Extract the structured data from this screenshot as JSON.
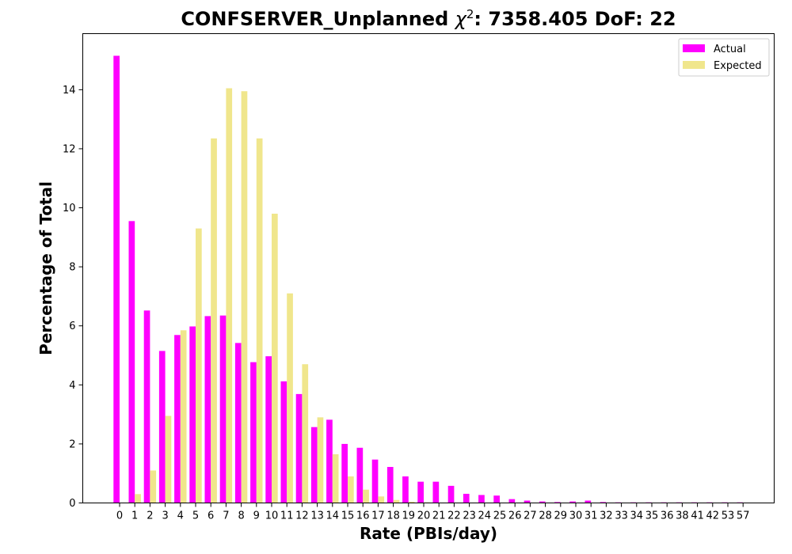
{
  "chart_data": {
    "type": "bar",
    "title": {
      "prefix": "CONFSERVER_Unplanned ",
      "chi_symbol": "χ",
      "chi_power": "2",
      "suffix": ": 7358.405 DoF: 22"
    },
    "xlabel": "Rate (PBIs/day)",
    "ylabel": "Percentage of Total",
    "ylim": [
      0,
      15.9
    ],
    "yticks": [
      0,
      2,
      4,
      6,
      8,
      10,
      12,
      14
    ],
    "legend_position": "top-right",
    "categories": [
      "0",
      "1",
      "2",
      "3",
      "4",
      "5",
      "6",
      "7",
      "8",
      "9",
      "10",
      "11",
      "12",
      "13",
      "14",
      "15",
      "16",
      "17",
      "18",
      "19",
      "20",
      "21",
      "22",
      "23",
      "24",
      "25",
      "26",
      "27",
      "28",
      "29",
      "30",
      "31",
      "32",
      "33",
      "34",
      "35",
      "36",
      "38",
      "41",
      "42",
      "53",
      "57"
    ],
    "series": [
      {
        "name": "Actual",
        "color": "#ff00ff",
        "values": [
          15.15,
          9.55,
          6.52,
          5.15,
          5.69,
          5.98,
          6.33,
          6.35,
          5.42,
          4.77,
          4.97,
          4.12,
          3.69,
          2.57,
          2.82,
          2.0,
          1.87,
          1.47,
          1.22,
          0.9,
          0.72,
          0.72,
          0.58,
          0.31,
          0.27,
          0.25,
          0.13,
          0.08,
          0.05,
          0.03,
          0.05,
          0.08,
          0.03,
          0.02,
          0.02,
          0.02,
          0.02,
          0.02,
          0.02,
          0.02,
          0.02,
          0.02
        ]
      },
      {
        "name": "Expected",
        "color": "#f0e68c",
        "values": [
          0.0,
          0.3,
          1.1,
          2.95,
          5.85,
          9.3,
          12.35,
          14.05,
          13.95,
          12.35,
          9.8,
          7.1,
          4.7,
          2.9,
          1.65,
          0.9,
          0.45,
          0.22,
          0.1,
          0.04,
          0.02,
          0.01,
          0,
          0,
          0,
          0,
          0,
          0,
          0,
          0,
          0,
          0,
          0,
          0,
          0,
          0,
          0,
          0,
          0,
          0,
          0,
          0
        ]
      }
    ]
  }
}
